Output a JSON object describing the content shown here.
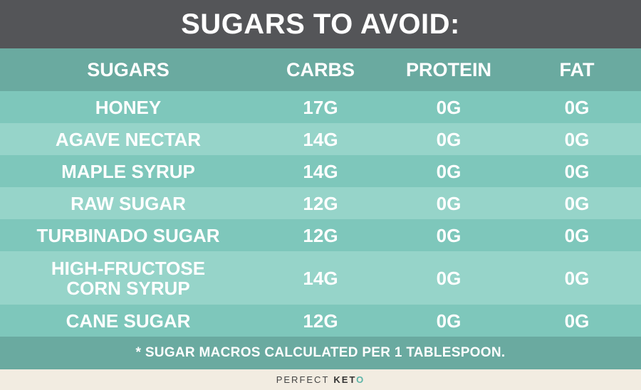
{
  "title": "SUGARS TO AVOID:",
  "columns": {
    "name": "SUGARS",
    "carbs": "CARBS",
    "protein": "PROTEIN",
    "fat": "FAT"
  },
  "rows": [
    {
      "name": "HONEY",
      "carbs": "17G",
      "protein": "0G",
      "fat": "0G"
    },
    {
      "name": "AGAVE NECTAR",
      "carbs": "14G",
      "protein": "0G",
      "fat": "0G"
    },
    {
      "name": "MAPLE SYRUP",
      "carbs": "14G",
      "protein": "0G",
      "fat": "0G"
    },
    {
      "name": "RAW SUGAR",
      "carbs": "12G",
      "protein": "0G",
      "fat": "0G"
    },
    {
      "name": "TURBINADO SUGAR",
      "carbs": "12G",
      "protein": "0G",
      "fat": "0G"
    },
    {
      "name": "HIGH-FRUCTOSE",
      "name_line2": "CORN SYRUP",
      "carbs": "14G",
      "protein": "0G",
      "fat": "0G"
    },
    {
      "name": "CANE SUGAR",
      "carbs": "12G",
      "protein": "0G",
      "fat": "0G"
    }
  ],
  "footnote": "* SUGAR MACROS CALCULATED PER 1 TABLESPOON.",
  "brand": {
    "light": "PERFECT",
    "bold_prefix": "KET",
    "bold_suffix": "O"
  },
  "colors": {
    "title_bg": "#545558",
    "header_bg": "#6aaaa0",
    "row_dark": "#7ec7bb",
    "row_light": "#96d4c9",
    "brand_bg": "#f2ece1",
    "brand_accent": "#5bb4a7"
  }
}
